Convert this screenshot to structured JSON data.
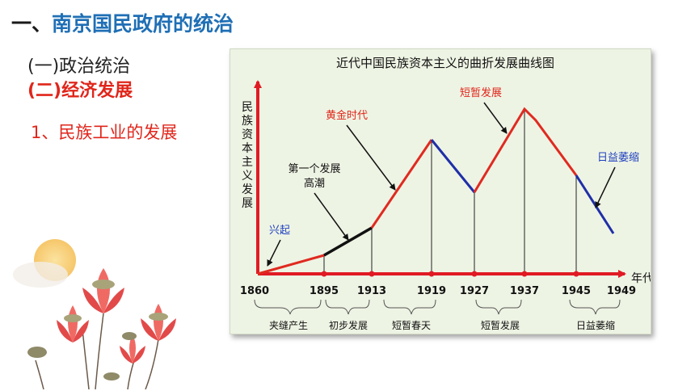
{
  "slide": {
    "title_prefix": "一、",
    "title_main": "南京国民政府的统治",
    "point1": "(一)政治统治",
    "point2": "(二)经济发展",
    "point3": "1、民族工业的发展"
  },
  "chart_data": {
    "type": "line",
    "title": "近代中国民族资本主义的曲折发展曲线图",
    "ylabel": "民族资本主义发展",
    "xlabel": "年代",
    "x": [
      "1860",
      "1895",
      "1913",
      "1919",
      "1927",
      "1937",
      "1945",
      "1949"
    ],
    "annotations": [
      "兴起",
      "第一个发展高潮",
      "黄金时代",
      "短暂发展",
      "日益萎缩"
    ],
    "periods": [
      "夹缝产生",
      "初步发展",
      "短暂春天",
      "短暂发展",
      "日益萎缩"
    ],
    "colors": {
      "rise": "#e02a20",
      "decline": "#1f2fa8",
      "first_boom": "#111111",
      "axis": "#e01b24"
    }
  }
}
